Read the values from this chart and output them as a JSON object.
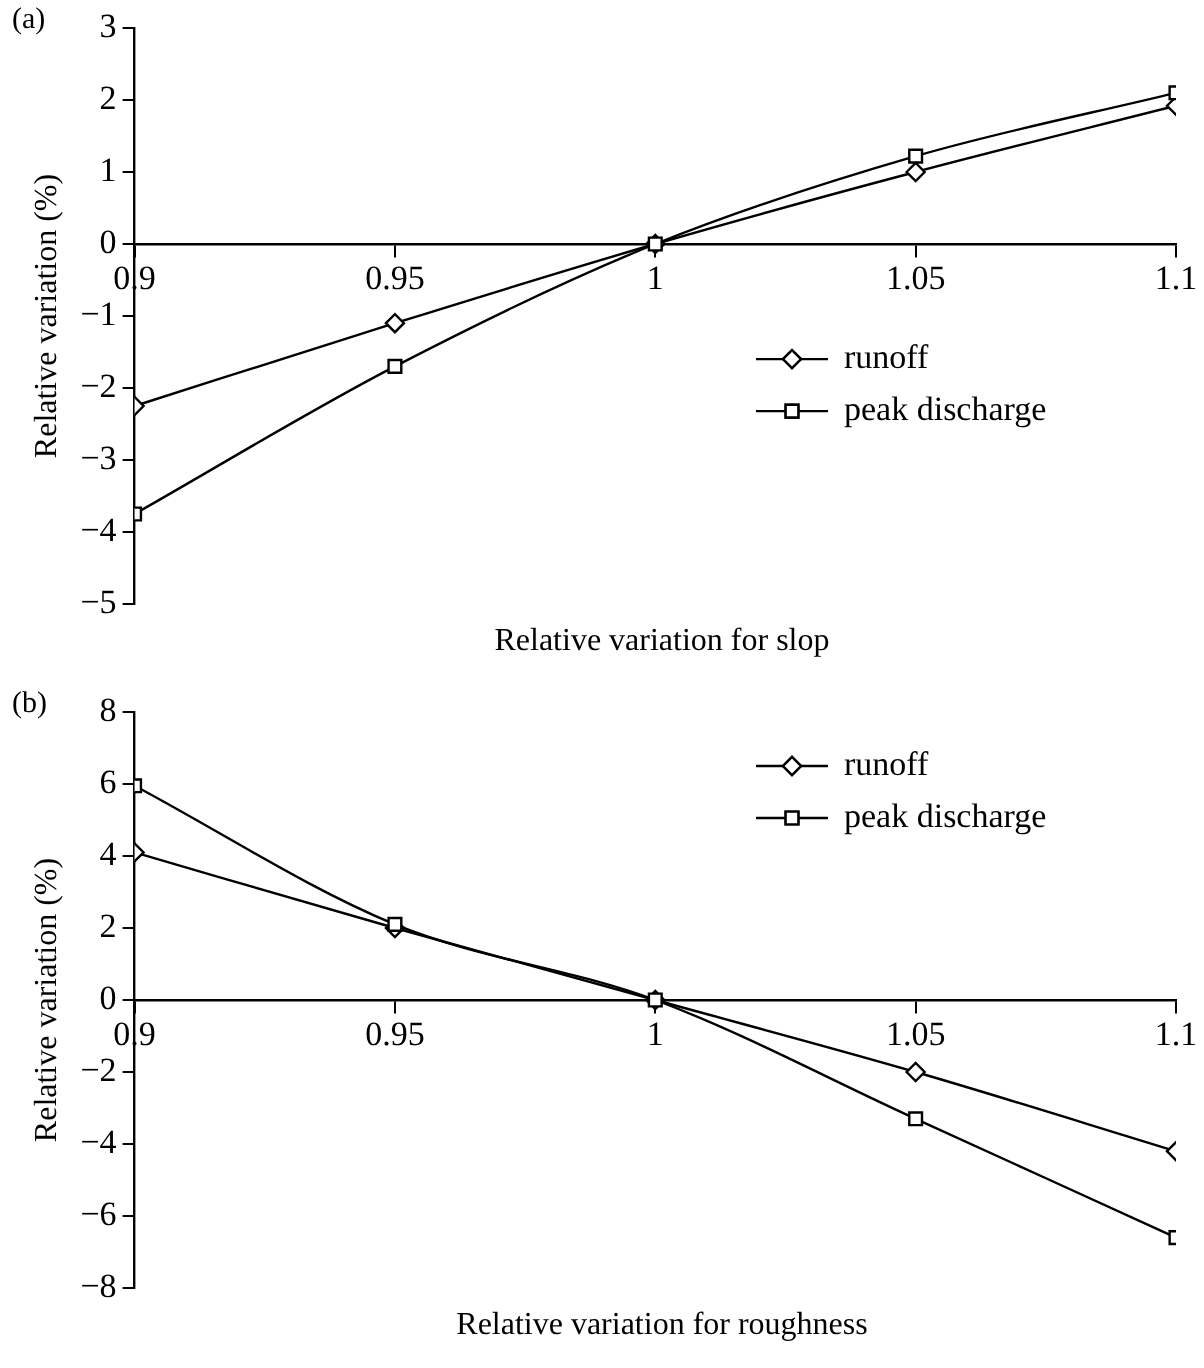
{
  "chart_data": [
    {
      "type": "line",
      "title": "(a)",
      "xlabel": "Relative variation for slop",
      "ylabel": "Relative variation (%)",
      "x": [
        0.9,
        0.95,
        1,
        1.05,
        1.1
      ],
      "xlim": [
        0.9,
        1.1
      ],
      "xticks": [
        0.9,
        0.95,
        1,
        1.05,
        1.1
      ],
      "ylim": [
        -5,
        3
      ],
      "yticks": [
        -5,
        -4,
        -3,
        -2,
        -1,
        0,
        1,
        2,
        3
      ],
      "grid": false,
      "legend": "right",
      "line_style": "solid",
      "series": [
        {
          "name": "runoff",
          "color": "#000000",
          "marker": "diamond",
          "values": [
            -2.25,
            -1.1,
            0,
            1.0,
            1.92
          ]
        },
        {
          "name": "peak discharge",
          "color": "#000000",
          "marker": "square",
          "values": [
            -3.75,
            -1.7,
            0,
            1.22,
            2.1
          ]
        }
      ]
    },
    {
      "type": "line",
      "title": "(b)",
      "xlabel": "Relative variation for roughness",
      "ylabel": "Relative variation (%)",
      "x": [
        0.9,
        0.95,
        1,
        1.05,
        1.1
      ],
      "xlim": [
        0.9,
        1.1
      ],
      "xticks": [
        0.9,
        0.95,
        1,
        1.05,
        1.1
      ],
      "ylim": [
        -8,
        8
      ],
      "yticks": [
        -8,
        -6,
        -4,
        -2,
        0,
        2,
        4,
        6,
        8
      ],
      "grid": false,
      "legend": "top right",
      "line_style": "solid",
      "series": [
        {
          "name": "runoff",
          "color": "#000000",
          "marker": "diamond",
          "values": [
            4.1,
            2.0,
            0,
            -2.0,
            -4.2
          ]
        },
        {
          "name": "peak discharge",
          "color": "#000000",
          "marker": "square",
          "values": [
            5.95,
            2.1,
            0,
            -3.3,
            -6.6
          ]
        }
      ]
    }
  ]
}
